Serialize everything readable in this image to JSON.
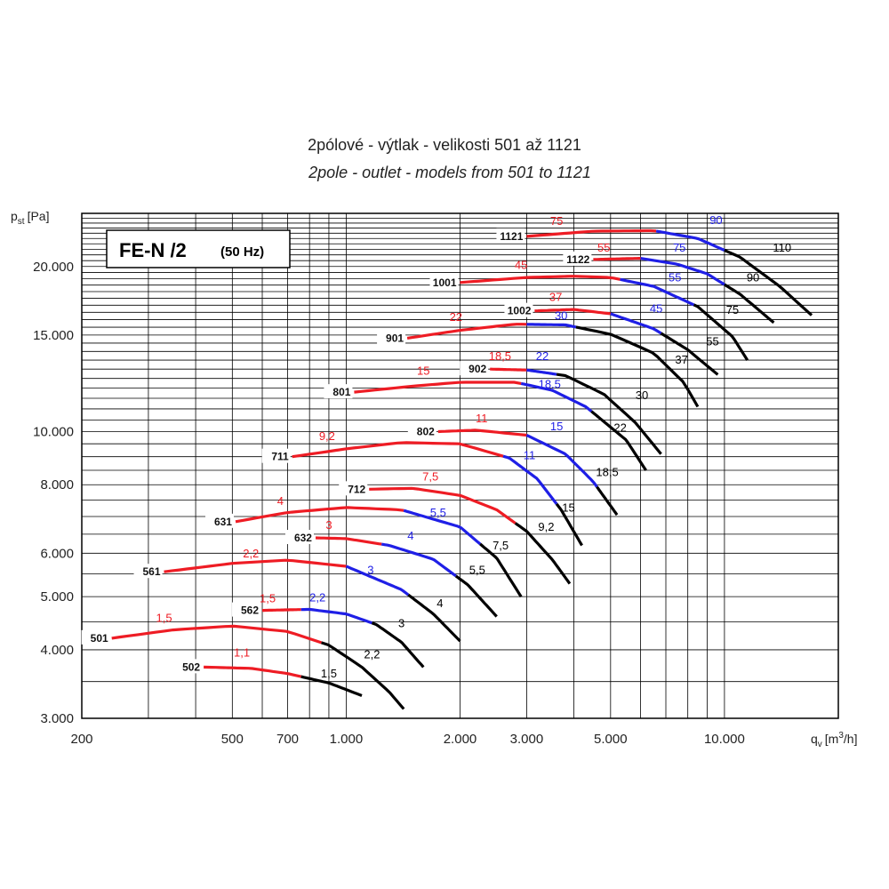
{
  "chart_data": {
    "type": "line",
    "title": "2pólové - výtlak - velikosti 501 až 1121",
    "subtitle": "2pole - outlet - models from 501 to 1121",
    "badge": {
      "main": "FE-N /2",
      "sub": "(50 Hz)"
    },
    "xlabel": "q",
    "xlabel_sub": "v",
    "xlabel_unit_pre": "[m",
    "xlabel_unit_sup": "3",
    "xlabel_unit_post": "/h]",
    "ylabel": "p",
    "ylabel_sub": "st",
    "ylabel_unit": "[Pa]",
    "xscale": "log",
    "yscale": "log",
    "xlim": [
      200,
      20000
    ],
    "ylim": [
      3000,
      25000
    ],
    "grid": true,
    "xticks": [
      {
        "v": 200,
        "t": "200"
      },
      {
        "v": 500,
        "t": "500"
      },
      {
        "v": 700,
        "t": "700"
      },
      {
        "v": 1000,
        "t": "1.000"
      },
      {
        "v": 2000,
        "t": "2.000"
      },
      {
        "v": 3000,
        "t": "3.000"
      },
      {
        "v": 5000,
        "t": "5.000"
      },
      {
        "v": 10000,
        "t": "10.000"
      }
    ],
    "yticks": [
      {
        "v": 3000,
        "t": "3.000"
      },
      {
        "v": 4000,
        "t": "4.000"
      },
      {
        "v": 5000,
        "t": "5.000"
      },
      {
        "v": 6000,
        "t": "6.000"
      },
      {
        "v": 8000,
        "t": "8.000"
      },
      {
        "v": 10000,
        "t": "10.000"
      },
      {
        "v": 15000,
        "t": "15.000"
      },
      {
        "v": 20000,
        "t": "20.000"
      }
    ],
    "colors": {
      "red": "#ee1c24",
      "blue": "#1f1fe6",
      "black": "#000000"
    },
    "series": [
      {
        "name": "502",
        "x": [
          420,
          560,
          700,
          900,
          1100
        ],
        "y": [
          3720,
          3700,
          3620,
          3480,
          3300
        ],
        "segments": [
          {
            "color": "red",
            "x1": 420,
            "x2": 760
          },
          {
            "color": "black",
            "x1": 760,
            "x2": 1100
          }
        ],
        "powers": [
          {
            "text": "1,1",
            "color": "red",
            "x": 530,
            "y": 3890
          },
          {
            "text": "1,5",
            "color": "black",
            "x": 900,
            "y": 3560
          }
        ]
      },
      {
        "name": "501",
        "x": [
          240,
          350,
          500,
          700,
          900,
          1100,
          1300,
          1420
        ],
        "y": [
          4200,
          4350,
          4420,
          4320,
          4080,
          3720,
          3350,
          3120
        ],
        "segments": [
          {
            "color": "red",
            "x1": 240,
            "x2": 860
          },
          {
            "color": "black",
            "x1": 860,
            "x2": 1420
          }
        ],
        "powers": [
          {
            "text": "1,5",
            "color": "red",
            "x": 330,
            "y": 4500
          },
          {
            "text": "2,2",
            "color": "black",
            "x": 1170,
            "y": 3860
          }
        ]
      },
      {
        "name": "562",
        "x": [
          600,
          800,
          1000,
          1200,
          1400,
          1600
        ],
        "y": [
          4720,
          4740,
          4650,
          4450,
          4130,
          3720
        ],
        "segments": [
          {
            "color": "red",
            "x1": 600,
            "x2": 760
          },
          {
            "color": "blue",
            "x1": 760,
            "x2": 1170
          },
          {
            "color": "black",
            "x1": 1170,
            "x2": 1600
          }
        ],
        "powers": [
          {
            "text": "1,5",
            "color": "red",
            "x": 620,
            "y": 4880
          },
          {
            "text": "2,2",
            "color": "blue",
            "x": 840,
            "y": 4900
          },
          {
            "text": "3",
            "color": "black",
            "x": 1400,
            "y": 4400
          }
        ]
      },
      {
        "name": "561",
        "x": [
          330,
          500,
          700,
          1000,
          1400,
          1700,
          2000
        ],
        "y": [
          5550,
          5750,
          5830,
          5680,
          5150,
          4650,
          4150
        ],
        "segments": [
          {
            "color": "red",
            "x1": 330,
            "x2": 1000
          },
          {
            "color": "blue",
            "x1": 1000,
            "x2": 1460
          },
          {
            "color": "black",
            "x1": 1460,
            "x2": 2000
          }
        ],
        "powers": [
          {
            "text": "2,2",
            "color": "red",
            "x": 560,
            "y": 5900
          },
          {
            "text": "3",
            "color": "blue",
            "x": 1160,
            "y": 5500
          },
          {
            "text": "4",
            "color": "black",
            "x": 1770,
            "y": 4780
          }
        ]
      },
      {
        "name": "632",
        "x": [
          830,
          1000,
          1300,
          1700,
          2100,
          2500
        ],
        "y": [
          6400,
          6380,
          6200,
          5850,
          5250,
          4600
        ],
        "segments": [
          {
            "color": "red",
            "x1": 830,
            "x2": 1240
          },
          {
            "color": "blue",
            "x1": 1240,
            "x2": 1950
          },
          {
            "color": "black",
            "x1": 1950,
            "x2": 2500
          }
        ],
        "powers": [
          {
            "text": "3",
            "color": "red",
            "x": 900,
            "y": 6650
          },
          {
            "text": "4",
            "color": "blue",
            "x": 1480,
            "y": 6350
          },
          {
            "text": "5,5",
            "color": "black",
            "x": 2220,
            "y": 5500
          }
        ]
      },
      {
        "name": "631",
        "x": [
          510,
          700,
          1000,
          1400,
          2000,
          2500,
          2900
        ],
        "y": [
          6850,
          7120,
          7270,
          7200,
          6700,
          5880,
          5000
        ],
        "segments": [
          {
            "color": "red",
            "x1": 510,
            "x2": 1420
          },
          {
            "color": "blue",
            "x1": 1420,
            "x2": 2260
          },
          {
            "color": "black",
            "x1": 2260,
            "x2": 2900
          }
        ],
        "powers": [
          {
            "text": "4",
            "color": "red",
            "x": 670,
            "y": 7350
          },
          {
            "text": "5,5",
            "color": "blue",
            "x": 1750,
            "y": 7000
          },
          {
            "text": "7,5",
            "color": "black",
            "x": 2560,
            "y": 6100
          }
        ]
      },
      {
        "name": "712",
        "x": [
          1150,
          1500,
          2000,
          2500,
          3000,
          3500,
          3900
        ],
        "y": [
          7850,
          7880,
          7650,
          7200,
          6580,
          5850,
          5280
        ],
        "segments": [
          {
            "color": "red",
            "x1": 1150,
            "x2": 2800
          },
          {
            "color": "black",
            "x1": 2800,
            "x2": 3900
          }
        ],
        "powers": [
          {
            "text": "7,5",
            "color": "red",
            "x": 1670,
            "y": 8150
          },
          {
            "text": "9,2",
            "color": "black",
            "x": 3380,
            "y": 6600
          }
        ]
      },
      {
        "name": "711",
        "x": [
          720,
          1000,
          1400,
          2000,
          2700,
          3200,
          3700,
          4200
        ],
        "y": [
          9000,
          9300,
          9550,
          9500,
          8950,
          8200,
          7200,
          6200
        ],
        "segments": [
          {
            "color": "red",
            "x1": 720,
            "x2": 2600
          },
          {
            "color": "blue",
            "x1": 2600,
            "x2": 3600
          },
          {
            "color": "black",
            "x1": 3600,
            "x2": 4200
          }
        ],
        "powers": [
          {
            "text": "9,2",
            "color": "red",
            "x": 890,
            "y": 9650
          },
          {
            "text": "11",
            "color": "blue",
            "x": 3050,
            "y": 8900
          },
          {
            "text": "15",
            "color": "black",
            "x": 3870,
            "y": 7150
          }
        ]
      },
      {
        "name": "802",
        "x": [
          1750,
          2200,
          3000,
          3800,
          4500,
          5200
        ],
        "y": [
          10000,
          10060,
          9850,
          9100,
          8100,
          7050
        ],
        "segments": [
          {
            "color": "red",
            "x1": 1750,
            "x2": 3000
          },
          {
            "color": "blue",
            "x1": 3000,
            "x2": 4600
          },
          {
            "color": "black",
            "x1": 4600,
            "x2": 5200
          }
        ],
        "powers": [
          {
            "text": "11",
            "color": "red",
            "x": 2280,
            "y": 10400
          },
          {
            "text": "15",
            "color": "blue",
            "x": 3600,
            "y": 10050
          },
          {
            "text": "18,5",
            "color": "black",
            "x": 4900,
            "y": 8300
          }
        ]
      },
      {
        "name": "801",
        "x": [
          1050,
          1500,
          2000,
          2800,
          3500,
          4300,
          5500,
          6200
        ],
        "y": [
          11800,
          12100,
          12300,
          12300,
          11900,
          11100,
          9650,
          8500
        ],
        "segments": [
          {
            "color": "red",
            "x1": 1050,
            "x2": 2900
          },
          {
            "color": "blue",
            "x1": 2900,
            "x2": 4450
          },
          {
            "color": "black",
            "x1": 4450,
            "x2": 6200
          }
        ],
        "powers": [
          {
            "text": "15",
            "color": "red",
            "x": 1600,
            "y": 12700
          },
          {
            "text": "18,5",
            "color": "blue",
            "x": 3450,
            "y": 12000
          },
          {
            "text": "22",
            "color": "black",
            "x": 5300,
            "y": 10000
          }
        ]
      },
      {
        "name": "902",
        "x": [
          2400,
          3000,
          3800,
          4800,
          5800,
          6800
        ],
        "y": [
          13000,
          12950,
          12650,
          11700,
          10400,
          9100
        ],
        "segments": [
          {
            "color": "red",
            "x1": 2400,
            "x2": 3000
          },
          {
            "color": "blue",
            "x1": 3000,
            "x2": 3600
          },
          {
            "color": "black",
            "x1": 3600,
            "x2": 6800
          }
        ],
        "powers": [
          {
            "text": "18,5",
            "color": "red",
            "x": 2550,
            "y": 13500
          },
          {
            "text": "22",
            "color": "blue",
            "x": 3300,
            "y": 13500
          },
          {
            "text": "30",
            "color": "black",
            "x": 6050,
            "y": 11450
          }
        ]
      },
      {
        "name": "901",
        "x": [
          1450,
          2000,
          2800,
          3800,
          5000,
          6500,
          7800,
          8500
        ],
        "y": [
          14800,
          15300,
          15700,
          15650,
          15050,
          13900,
          12300,
          11100
        ],
        "segments": [
          {
            "color": "red",
            "x1": 1450,
            "x2": 3000
          },
          {
            "color": "blue",
            "x1": 3000,
            "x2": 4050
          },
          {
            "color": "black",
            "x1": 4050,
            "x2": 8500
          }
        ],
        "powers": [
          {
            "text": "22",
            "color": "red",
            "x": 1950,
            "y": 15900
          },
          {
            "text": "30",
            "color": "blue",
            "x": 3700,
            "y": 16000
          },
          {
            "text": "37",
            "color": "black",
            "x": 7700,
            "y": 13300
          }
        ]
      },
      {
        "name": "1002",
        "x": [
          3150,
          4000,
          5000,
          6500,
          8000,
          9600
        ],
        "y": [
          16600,
          16700,
          16400,
          15400,
          14100,
          12700
        ],
        "segments": [
          {
            "color": "red",
            "x1": 3150,
            "x2": 5000
          },
          {
            "color": "blue",
            "x1": 5000,
            "x2": 6800
          },
          {
            "color": "black",
            "x1": 6800,
            "x2": 9600
          }
        ],
        "powers": [
          {
            "text": "37",
            "color": "red",
            "x": 3580,
            "y": 17300
          },
          {
            "text": "45",
            "color": "blue",
            "x": 6600,
            "y": 16500
          },
          {
            "text": "55",
            "color": "black",
            "x": 9300,
            "y": 14350
          }
        ]
      },
      {
        "name": "1001",
        "x": [
          2000,
          3000,
          4000,
          5000,
          6500,
          8500,
          10500,
          11500
        ],
        "y": [
          18700,
          19100,
          19200,
          19100,
          18400,
          16900,
          14900,
          13500
        ],
        "segments": [
          {
            "color": "red",
            "x1": 2000,
            "x2": 5300
          },
          {
            "color": "blue",
            "x1": 5300,
            "x2": 8300
          },
          {
            "color": "black",
            "x1": 8300,
            "x2": 11500
          }
        ],
        "powers": [
          {
            "text": "45",
            "color": "red",
            "x": 2900,
            "y": 19800
          },
          {
            "text": "55",
            "color": "blue",
            "x": 7400,
            "y": 18800
          },
          {
            "text": "75",
            "color": "black",
            "x": 10500,
            "y": 16400
          }
        ]
      },
      {
        "name": "1122",
        "x": [
          4500,
          6000,
          7500,
          9000,
          11000,
          13500
        ],
        "y": [
          20600,
          20700,
          20200,
          19400,
          17800,
          15800
        ],
        "segments": [
          {
            "color": "red",
            "x1": 4500,
            "x2": 6000
          },
          {
            "color": "blue",
            "x1": 6000,
            "x2": 10000
          },
          {
            "color": "black",
            "x1": 10000,
            "x2": 13500
          }
        ],
        "powers": [
          {
            "text": "55",
            "color": "red",
            "x": 4800,
            "y": 21300
          },
          {
            "text": "75",
            "color": "blue",
            "x": 7600,
            "y": 21300
          },
          {
            "text": "90",
            "color": "black",
            "x": 11900,
            "y": 18800
          }
        ]
      },
      {
        "name": "1121",
        "x": [
          3000,
          4500,
          6500,
          8500,
          11000,
          14000,
          17000
        ],
        "y": [
          22700,
          23200,
          23250,
          22500,
          20800,
          18400,
          16300
        ],
        "segments": [
          {
            "color": "red",
            "x1": 3000,
            "x2": 6600
          },
          {
            "color": "blue",
            "x1": 6600,
            "x2": 10000
          },
          {
            "color": "black",
            "x1": 10000,
            "x2": 17000
          }
        ],
        "powers": [
          {
            "text": "75",
            "color": "red",
            "x": 3600,
            "y": 23800
          },
          {
            "text": "90",
            "color": "blue",
            "x": 9500,
            "y": 23900
          },
          {
            "text": "110",
            "color": "black",
            "x": 14200,
            "y": 21300
          }
        ]
      }
    ]
  }
}
